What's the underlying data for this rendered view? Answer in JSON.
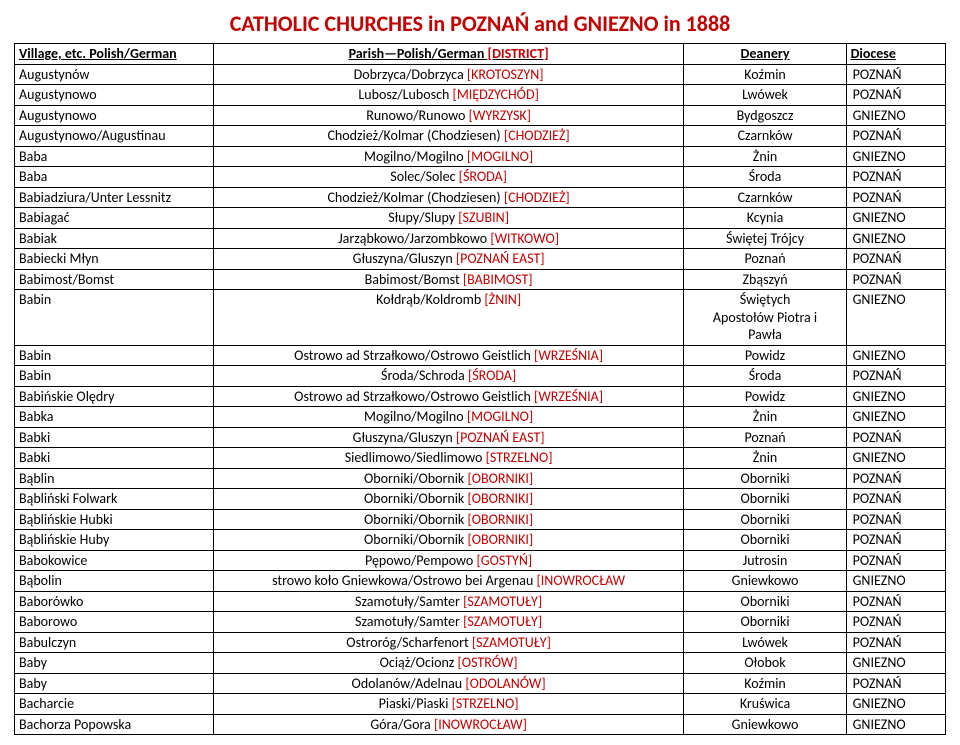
{
  "title": "CATHOLIC CHURCHES in POZNAŃ and GNIEZNO in 1888",
  "headers": {
    "village": "Village, etc. Polish/German",
    "parish": "Parish—Polish/German [DISTRICT]",
    "deanery": "Deanery",
    "diocese": "Diocese"
  },
  "district_color": "#c00000",
  "rows": [
    {
      "village": "Augustynów",
      "parish": "Dobrzyca/Dobrzyca",
      "district": "[KROTOSZYN]",
      "deanery": "Koźmin",
      "diocese": "POZNAŃ"
    },
    {
      "village": "Augustynowo",
      "parish": "Lubosz/Lubosch",
      "district": "[MIĘDZYCHÓD]",
      "deanery": "Lwówek",
      "diocese": "POZNAŃ"
    },
    {
      "village": "Augustynowo",
      "parish": "Runowo/Runowo",
      "district": "[WYRZYSK]",
      "deanery": "Bydgoszcz",
      "diocese": "GNIEZNO"
    },
    {
      "village": "Augustynowo/Augustinau",
      "parish": "Chodzież/Kolmar (Chodziesen)",
      "district": "[CHODZIEŻ]",
      "deanery": "Czarnków",
      "diocese": "POZNAŃ"
    },
    {
      "village": "Baba",
      "parish": "Mogilno/Mogilno",
      "district": "[MOGILNO]",
      "deanery": "Żnin",
      "diocese": "GNIEZNO"
    },
    {
      "village": "Baba",
      "parish": "Solec/Solec",
      "district": "[ŚRODA]",
      "deanery": "Środa",
      "diocese": "POZNAŃ"
    },
    {
      "village": "Babiadziura/Unter Lessnitz",
      "parish": "Chodzież/Kolmar (Chodziesen)",
      "district": "[CHODZIEŻ]",
      "deanery": "Czarnków",
      "diocese": "POZNAŃ"
    },
    {
      "village": "Babiagać",
      "parish": "Słupy/Slupy",
      "district": "[SZUBIN]",
      "deanery": "Kcynia",
      "diocese": "GNIEZNO"
    },
    {
      "village": "Babiak",
      "parish": "Jarząbkowo/Jarzombkowo",
      "district": "[WITKOWO]",
      "deanery": "Świętej Trójcy",
      "diocese": "GNIEZNO"
    },
    {
      "village": "Babiecki Młyn",
      "parish": "Głuszyna/Gluszyn",
      "district": "[POZNAŃ EAST]",
      "deanery": "Poznań",
      "diocese": "POZNAŃ"
    },
    {
      "village": "Babimost/Bomst",
      "parish": "Babimost/Bomst",
      "district": "[BABIMOST]",
      "deanery": "Zbąszyń",
      "diocese": "POZNAŃ"
    },
    {
      "village": "Babin",
      "parish": "Kołdrąb/Koldromb",
      "district": "[ŻNIN]",
      "deanery": "Świętych\nApostołów Piotra i\nPawła",
      "diocese": "GNIEZNO"
    },
    {
      "village": "Babin",
      "parish": "Ostrowo ad Strzałkowo/Ostrowo Geistlich",
      "district": "[WRZEŚNIA]",
      "deanery": "Powidz",
      "diocese": "GNIEZNO"
    },
    {
      "village": "Babin",
      "parish": "Środa/Schroda",
      "district": "[ŚRODA]",
      "deanery": "Środa",
      "diocese": "POZNAŃ"
    },
    {
      "village": "Babińskie Olędry",
      "parish": "Ostrowo ad Strzałkowo/Ostrowo Geistlich",
      "district": "[WRZEŚNIA]",
      "deanery": "Powidz",
      "diocese": "GNIEZNO"
    },
    {
      "village": "Babka",
      "parish": "Mogilno/Mogilno",
      "district": "[MOGILNO]",
      "deanery": "Żnin",
      "diocese": "GNIEZNO"
    },
    {
      "village": "Babki",
      "parish": "Głuszyna/Gluszyn",
      "district": "[POZNAŃ EAST]",
      "deanery": "Poznań",
      "diocese": "POZNAŃ"
    },
    {
      "village": "Babki",
      "parish": "Siedlimowo/Siedlimowo",
      "district": "[STRZELNO]",
      "deanery": "Żnin",
      "diocese": "GNIEZNO"
    },
    {
      "village": "Bąblin",
      "parish": "Oborniki/Obornik",
      "district": "[OBORNIKI]",
      "deanery": "Oborniki",
      "diocese": "POZNAŃ"
    },
    {
      "village": "Bąbliński Folwark",
      "parish": "Oborniki/Obornik",
      "district": "[OBORNIKI]",
      "deanery": "Oborniki",
      "diocese": "POZNAŃ"
    },
    {
      "village": "Bąblińskie Hubki",
      "parish": "Oborniki/Obornik",
      "district": "[OBORNIKI]",
      "deanery": "Oborniki",
      "diocese": "POZNAŃ"
    },
    {
      "village": "Bąblińskie Huby",
      "parish": "Oborniki/Obornik",
      "district": "[OBORNIKI]",
      "deanery": "Oborniki",
      "diocese": "POZNAŃ"
    },
    {
      "village": "Babokowice",
      "parish": "Pępowo/Pempowo",
      "district": "[GOSTYŃ]",
      "deanery": "Jutrosin",
      "diocese": "POZNAŃ"
    },
    {
      "village": "Bąbolin",
      "parish": "strowo koło Gniewkowa/Ostrowo bei Argenau",
      "district": "[INOWROCŁAW",
      "deanery": "Gniewkowo",
      "diocese": "GNIEZNO"
    },
    {
      "village": "Baborówko",
      "parish": "Szamotuły/Samter",
      "district": "[SZAMOTUŁY]",
      "deanery": "Oborniki",
      "diocese": "POZNAŃ"
    },
    {
      "village": "Baborowo",
      "parish": "Szamotuły/Samter",
      "district": "[SZAMOTUŁY]",
      "deanery": "Oborniki",
      "diocese": "POZNAŃ"
    },
    {
      "village": "Babulczyn",
      "parish": "Ostroróg/Scharfenort",
      "district": "[SZAMOTUŁY]",
      "deanery": "Lwówek",
      "diocese": "POZNAŃ"
    },
    {
      "village": "Baby",
      "parish": "Ociąż/Ocionz",
      "district": "[OSTRÓW]",
      "deanery": "Ołobok",
      "diocese": "GNIEZNO"
    },
    {
      "village": "Baby",
      "parish": "Odolanów/Adelnau",
      "district": "[ODOLANÓW]",
      "deanery": "Koźmin",
      "diocese": "POZNAŃ"
    },
    {
      "village": "Bacharcie",
      "parish": "Piaski/Piaski",
      "district": "[STRZELNO]",
      "deanery": "Kruświca",
      "diocese": "GNIEZNO"
    },
    {
      "village": "Bachorza Popowska",
      "parish": "Góra/Gora",
      "district": "[INOWROCŁAW]",
      "deanery": "Gniewkowo",
      "diocese": "GNIEZNO"
    }
  ]
}
